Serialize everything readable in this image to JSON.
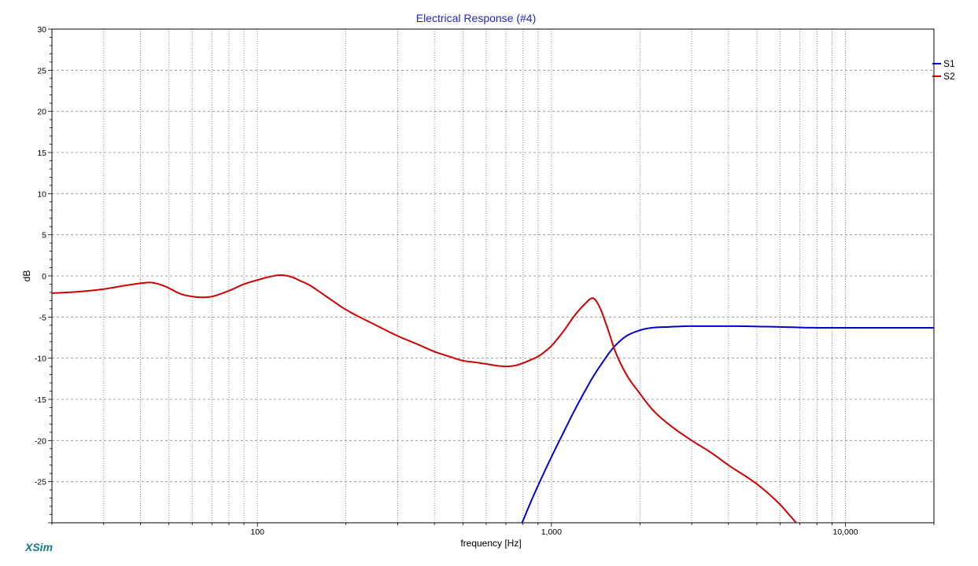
{
  "chart_data": {
    "type": "line",
    "title": "Electrical Response (#4)",
    "xlabel": "frequency [Hz]",
    "ylabel": "dB",
    "x_scale": "log",
    "xlim": [
      20,
      20000
    ],
    "ylim": [
      -30,
      30
    ],
    "grid": true,
    "legend_position": "right",
    "x_tick_labels": [
      {
        "value": 100,
        "label": "100"
      },
      {
        "value": 1000,
        "label": "1,000"
      },
      {
        "value": 10000,
        "label": "10,000"
      }
    ],
    "y_tick_labels": [
      {
        "value": 30,
        "label": "30"
      },
      {
        "value": 25,
        "label": "25"
      },
      {
        "value": 20,
        "label": "20"
      },
      {
        "value": 15,
        "label": "15"
      },
      {
        "value": 10,
        "label": "10"
      },
      {
        "value": 5,
        "label": "5"
      },
      {
        "value": 0,
        "label": "0"
      },
      {
        "value": -5,
        "label": "-5"
      },
      {
        "value": -10,
        "label": "-10"
      },
      {
        "value": -15,
        "label": "-15"
      },
      {
        "value": -20,
        "label": "-20"
      },
      {
        "value": -25,
        "label": "-25"
      }
    ],
    "series": [
      {
        "name": "S1",
        "color": "#0000cc",
        "points": [
          [
            795,
            -30
          ],
          [
            850,
            -27.5
          ],
          [
            900,
            -25.5
          ],
          [
            1000,
            -22
          ],
          [
            1100,
            -19
          ],
          [
            1200,
            -16.3
          ],
          [
            1300,
            -14
          ],
          [
            1400,
            -12
          ],
          [
            1500,
            -10.4
          ],
          [
            1600,
            -9
          ],
          [
            1700,
            -8
          ],
          [
            1800,
            -7.3
          ],
          [
            2000,
            -6.6
          ],
          [
            2200,
            -6.3
          ],
          [
            2500,
            -6.2
          ],
          [
            3000,
            -6.1
          ],
          [
            4000,
            -6.1
          ],
          [
            6000,
            -6.2
          ],
          [
            8000,
            -6.3
          ],
          [
            10000,
            -6.3
          ],
          [
            20000,
            -6.3
          ]
        ]
      },
      {
        "name": "S2",
        "color": "#cc0000",
        "points": [
          [
            20,
            -2.1
          ],
          [
            25,
            -1.9
          ],
          [
            30,
            -1.6
          ],
          [
            35,
            -1.2
          ],
          [
            40,
            -0.9
          ],
          [
            43,
            -0.8
          ],
          [
            48,
            -1.2
          ],
          [
            55,
            -2.2
          ],
          [
            60,
            -2.5
          ],
          [
            65,
            -2.6
          ],
          [
            70,
            -2.5
          ],
          [
            80,
            -1.8
          ],
          [
            90,
            -1.0
          ],
          [
            100,
            -0.5
          ],
          [
            110,
            -0.1
          ],
          [
            120,
            0.1
          ],
          [
            130,
            -0.1
          ],
          [
            140,
            -0.6
          ],
          [
            150,
            -1.1
          ],
          [
            170,
            -2.4
          ],
          [
            200,
            -4.1
          ],
          [
            250,
            -5.9
          ],
          [
            300,
            -7.3
          ],
          [
            350,
            -8.3
          ],
          [
            400,
            -9.2
          ],
          [
            450,
            -9.8
          ],
          [
            500,
            -10.3
          ],
          [
            550,
            -10.5
          ],
          [
            600,
            -10.7
          ],
          [
            650,
            -10.9
          ],
          [
            700,
            -11.0
          ],
          [
            750,
            -10.9
          ],
          [
            800,
            -10.6
          ],
          [
            850,
            -10.2
          ],
          [
            900,
            -9.8
          ],
          [
            950,
            -9.2
          ],
          [
            1000,
            -8.5
          ],
          [
            1100,
            -6.7
          ],
          [
            1200,
            -4.8
          ],
          [
            1300,
            -3.4
          ],
          [
            1380,
            -2.7
          ],
          [
            1450,
            -3.6
          ],
          [
            1550,
            -6.3
          ],
          [
            1650,
            -9.2
          ],
          [
            1800,
            -12
          ],
          [
            2000,
            -14.3
          ],
          [
            2200,
            -16.2
          ],
          [
            2500,
            -18
          ],
          [
            3000,
            -20
          ],
          [
            3500,
            -21.5
          ],
          [
            4000,
            -23
          ],
          [
            5000,
            -25.3
          ],
          [
            6000,
            -27.8
          ],
          [
            6500,
            -29.2
          ],
          [
            6800,
            -30
          ]
        ]
      }
    ]
  },
  "branding": {
    "app_name": "XSim"
  }
}
